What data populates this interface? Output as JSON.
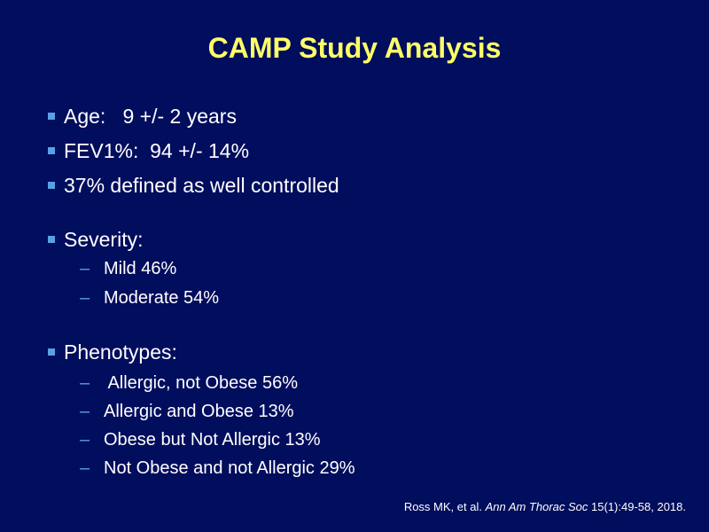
{
  "slide": {
    "title": "CAMP Study Analysis",
    "bullets": [
      {
        "text": "Age:   9 +/- 2 years"
      },
      {
        "text": "FEV1%:  94 +/- 14%"
      },
      {
        "text": "37% defined as well controlled"
      },
      {
        "text": "Severity:"
      },
      {
        "text": "Phenotypes:"
      }
    ],
    "severity_items": [
      {
        "dash": "–",
        "text": "Mild 46%"
      },
      {
        "dash": "–",
        "text": "Moderate 54%"
      }
    ],
    "phenotype_items": [
      {
        "dash": "–",
        "text": " Allergic, not Obese 56%"
      },
      {
        "dash": "–",
        "text": "Allergic and Obese 13%"
      },
      {
        "dash": "–",
        "text": "Obese but Not Allergic 13%"
      },
      {
        "dash": "–",
        "text": "Not Obese and not Allergic 29%"
      }
    ],
    "citation": {
      "authors": "Ross MK, et al. ",
      "journal": "Ann Am Thorac Soc",
      "details": " 15(1):49-58, 2018."
    }
  }
}
